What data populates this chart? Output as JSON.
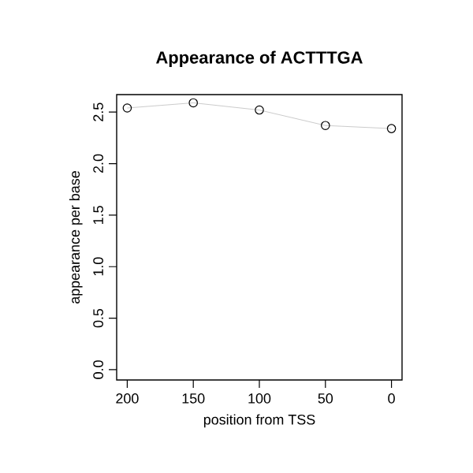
{
  "chart_data": {
    "type": "line",
    "title": "Appearance of ACTTTGA",
    "xlabel": "position from TSS",
    "ylabel": "appearance per base",
    "x": [
      200,
      150,
      100,
      50,
      0
    ],
    "series": [
      {
        "color": "#bebebe",
        "values": [
          2.54,
          2.59,
          2.52,
          2.37,
          2.34
        ]
      }
    ],
    "marker": "circle",
    "xlim": [
      208,
      -8
    ],
    "ylim": [
      -0.1,
      2.67
    ],
    "xticks": [
      200,
      150,
      100,
      50,
      0
    ],
    "yticks": [
      {
        "value": 0,
        "label": "0.0"
      },
      {
        "value": 0.5,
        "label": "0.5"
      },
      {
        "value": 1,
        "label": "1.0"
      },
      {
        "value": 1.5,
        "label": "1.5"
      },
      {
        "value": 2,
        "label": "2.0"
      },
      {
        "value": 2.5,
        "label": "2.5"
      }
    ]
  }
}
